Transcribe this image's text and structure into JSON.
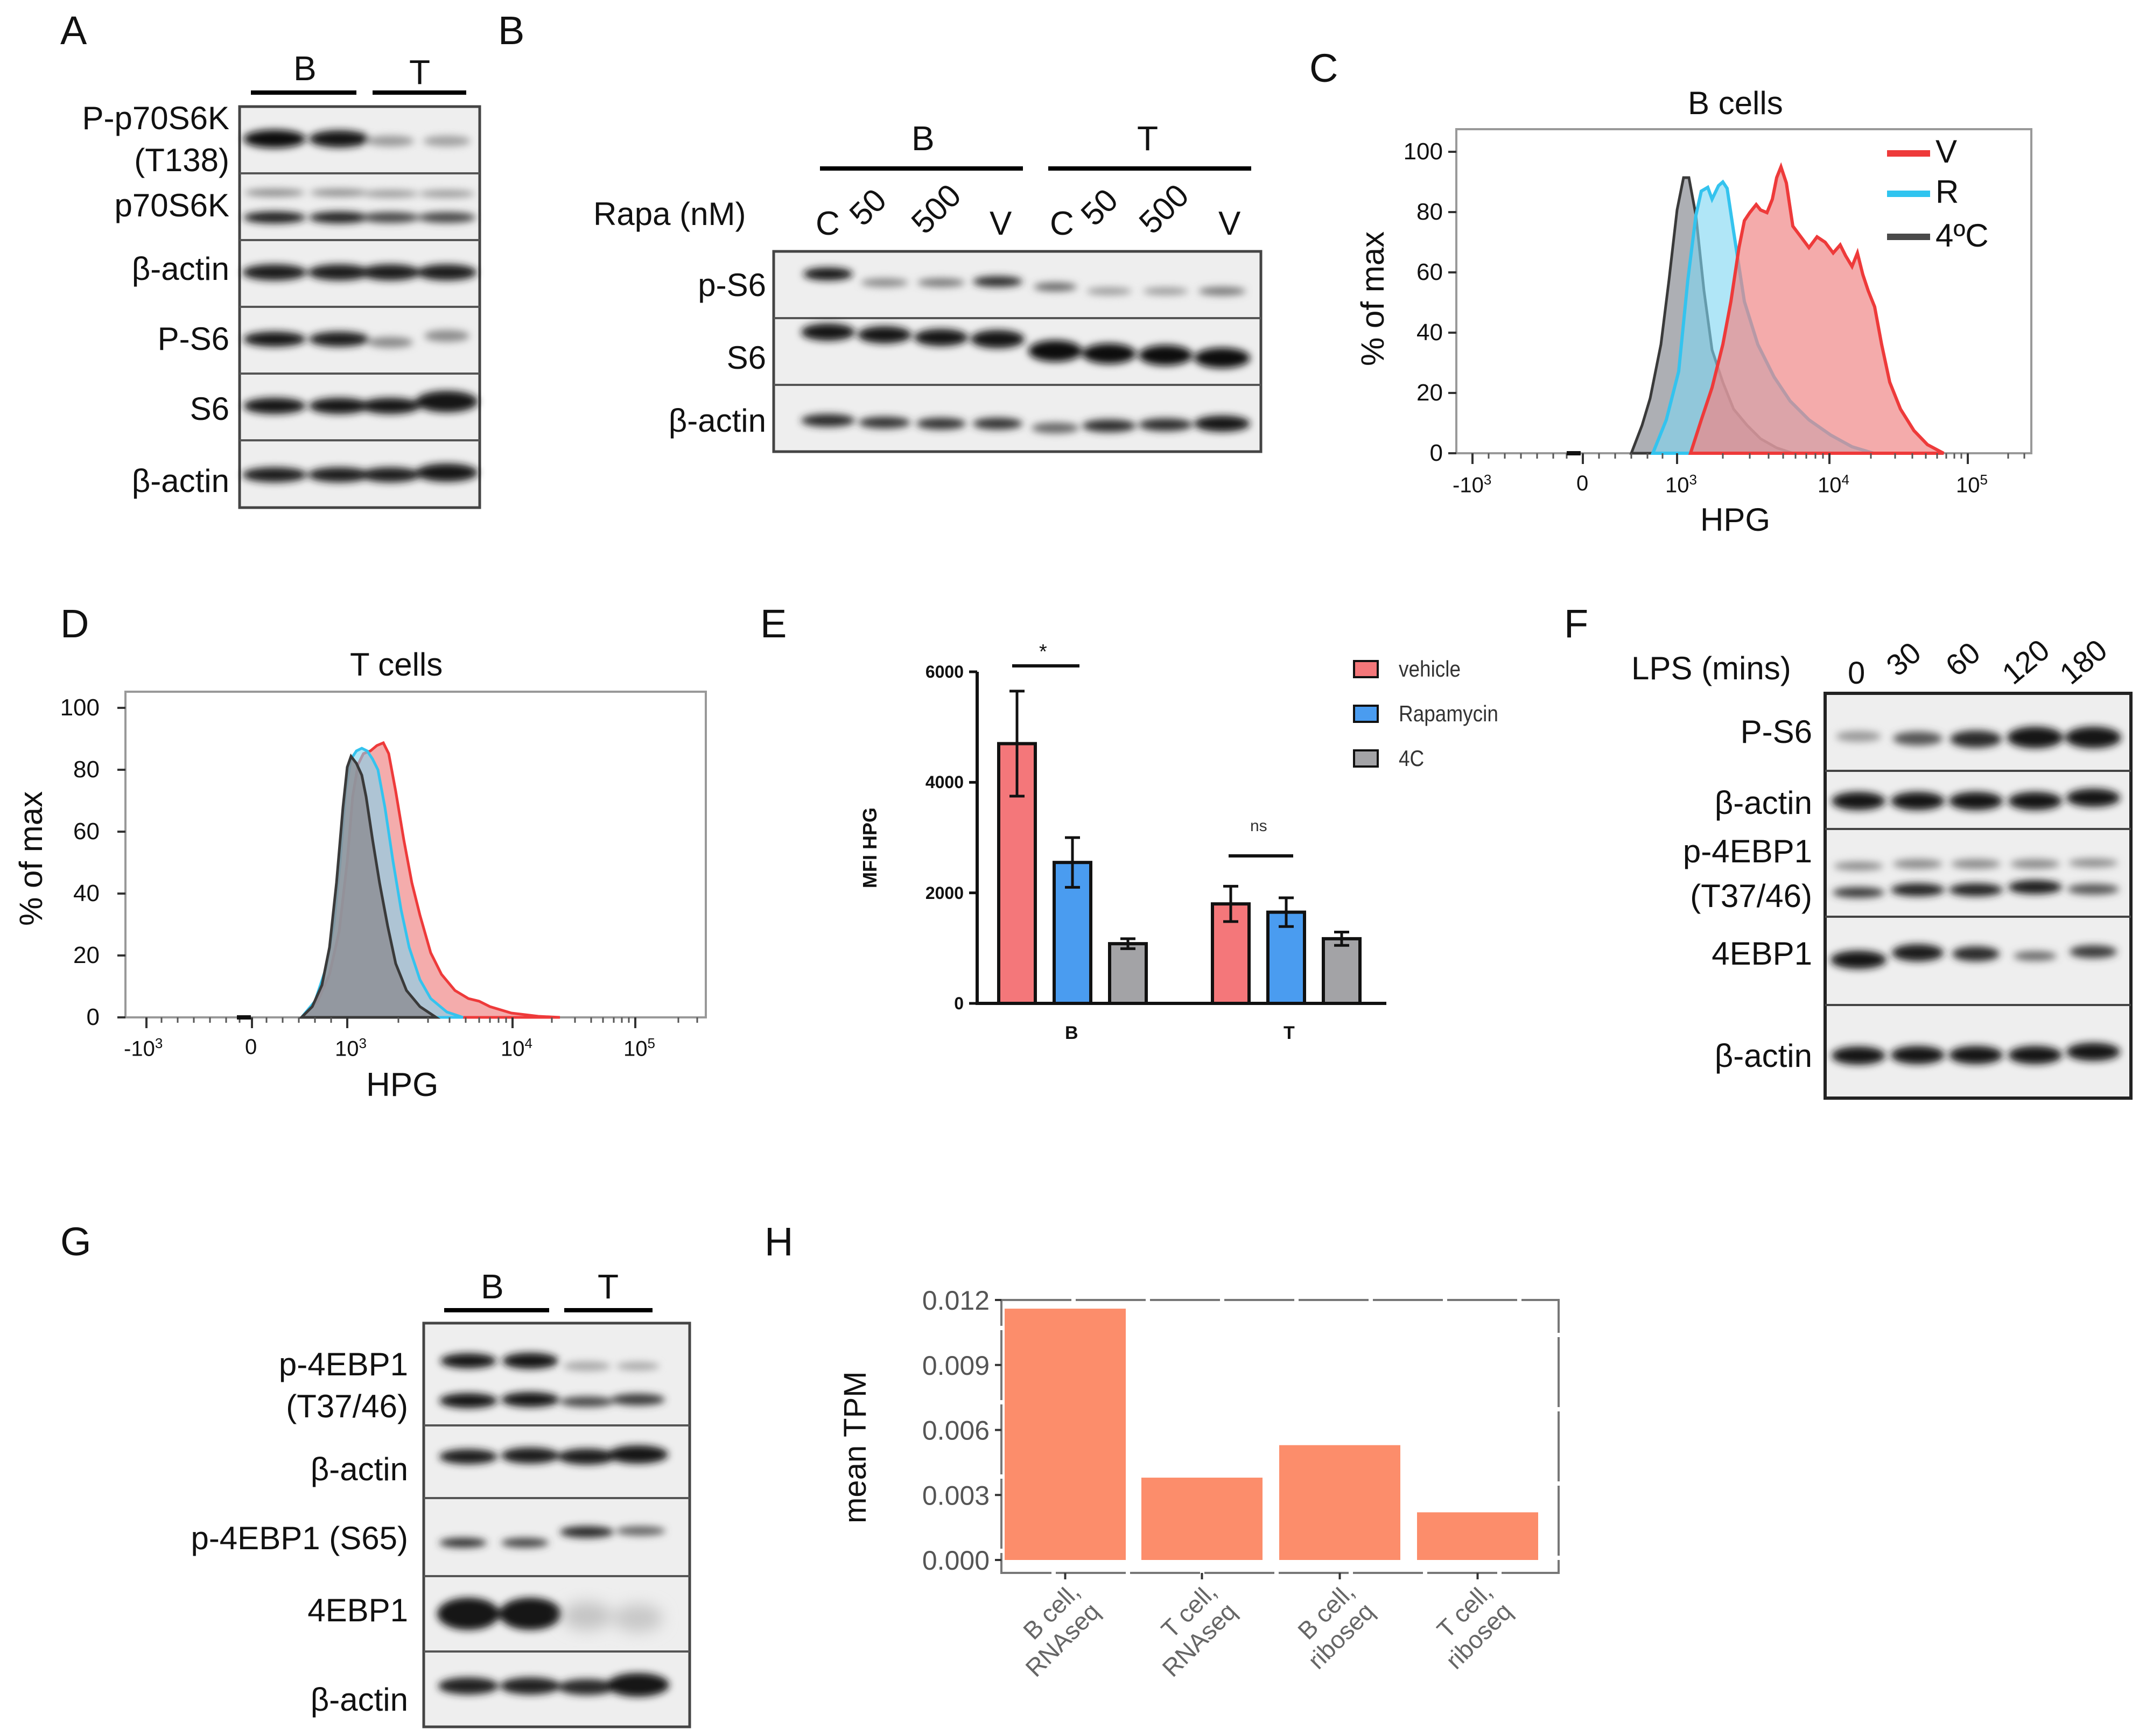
{
  "panel_labels": {
    "a": "A",
    "b": "B",
    "c": "C",
    "d": "D",
    "e": "E",
    "f": "F",
    "g": "G",
    "h": "H"
  },
  "blot_a": {
    "groups": [
      "B",
      "T"
    ],
    "rows": [
      "P-p70S6K",
      "(T138)",
      "p70S6K",
      "β-actin",
      "P-S6",
      "S6",
      "β-actin"
    ]
  },
  "blot_b": {
    "groups": [
      "B",
      "T"
    ],
    "treatment_label": "Rapa (nM)",
    "lanes": [
      "C",
      "50",
      "500",
      "V",
      "C",
      "50",
      "500",
      "V"
    ],
    "rows": [
      "p-S6",
      "S6",
      "β-actin"
    ]
  },
  "hist_c": {
    "title": "B cells",
    "xlabel": "HPG",
    "ylabel": "% of max",
    "yticks": [
      "0",
      "20",
      "40",
      "60",
      "80",
      "100"
    ],
    "legend": [
      {
        "label": "V",
        "color": "#ee3a3a"
      },
      {
        "label": "R",
        "color": "#2fc4ef"
      },
      {
        "label": "4ºC",
        "color": "#4a4a4a"
      }
    ]
  },
  "hist_d": {
    "title": "T cells",
    "xlabel": "HPG",
    "ylabel": "% of max",
    "yticks": [
      "0",
      "20",
      "40",
      "60",
      "80",
      "100"
    ]
  },
  "hist_xticks": {
    "neg": "-10",
    "zero": "0",
    "t3": "10",
    "t4": "10",
    "t5": "10",
    "neg_exp": "3",
    "e3": "3",
    "e4": "4",
    "e5": "5"
  },
  "chart_data": [
    {
      "id": "E",
      "type": "bar",
      "categories": [
        "B",
        "T"
      ],
      "series": [
        {
          "name": "vehicle",
          "values": [
            4700,
            1800
          ],
          "errors": [
            950,
            320
          ],
          "color": "#f4777a"
        },
        {
          "name": "Rapamycin",
          "values": [
            2550,
            1650
          ],
          "errors": [
            450,
            260
          ],
          "color": "#4a9cf0"
        },
        {
          "name": "4C",
          "values": [
            1080,
            1170
          ],
          "errors": [
            90,
            120
          ],
          "color": "#a3a3a6"
        }
      ],
      "ylabel": "MFI HPG",
      "ylim": [
        0,
        6000
      ],
      "yticks": [
        0,
        2000,
        4000,
        6000
      ],
      "significance": [
        "*",
        "ns"
      ],
      "legend_placement": "top-right"
    },
    {
      "id": "H",
      "type": "bar",
      "categories": [
        "B cell,\nRNAseq",
        "T cell,\nRNAseq",
        "B cell,\nriboseq",
        "T cell,\nriboseq"
      ],
      "values": [
        0.0116,
        0.0038,
        0.0053,
        0.0022
      ],
      "ylabel": "mean TPM",
      "ylim": [
        0,
        0.012
      ],
      "yticks": [
        "0.000",
        "0.003",
        "0.006",
        "0.009",
        "0.012"
      ],
      "color": "#fc8d6b"
    }
  ],
  "blot_f": {
    "treatment_label": "LPS (mins)",
    "lanes": [
      "0",
      "30",
      "60",
      "120",
      "180"
    ],
    "rows": [
      "P-S6",
      "β-actin",
      "p-4EBP1",
      "(T37/46)",
      "4EBP1",
      "β-actin"
    ]
  },
  "blot_g": {
    "groups": [
      "B",
      "T"
    ],
    "rows": [
      "p-4EBP1",
      "(T37/46)",
      "β-actin",
      "p-4EBP1 (S65)",
      "4EBP1",
      "β-actin"
    ]
  }
}
